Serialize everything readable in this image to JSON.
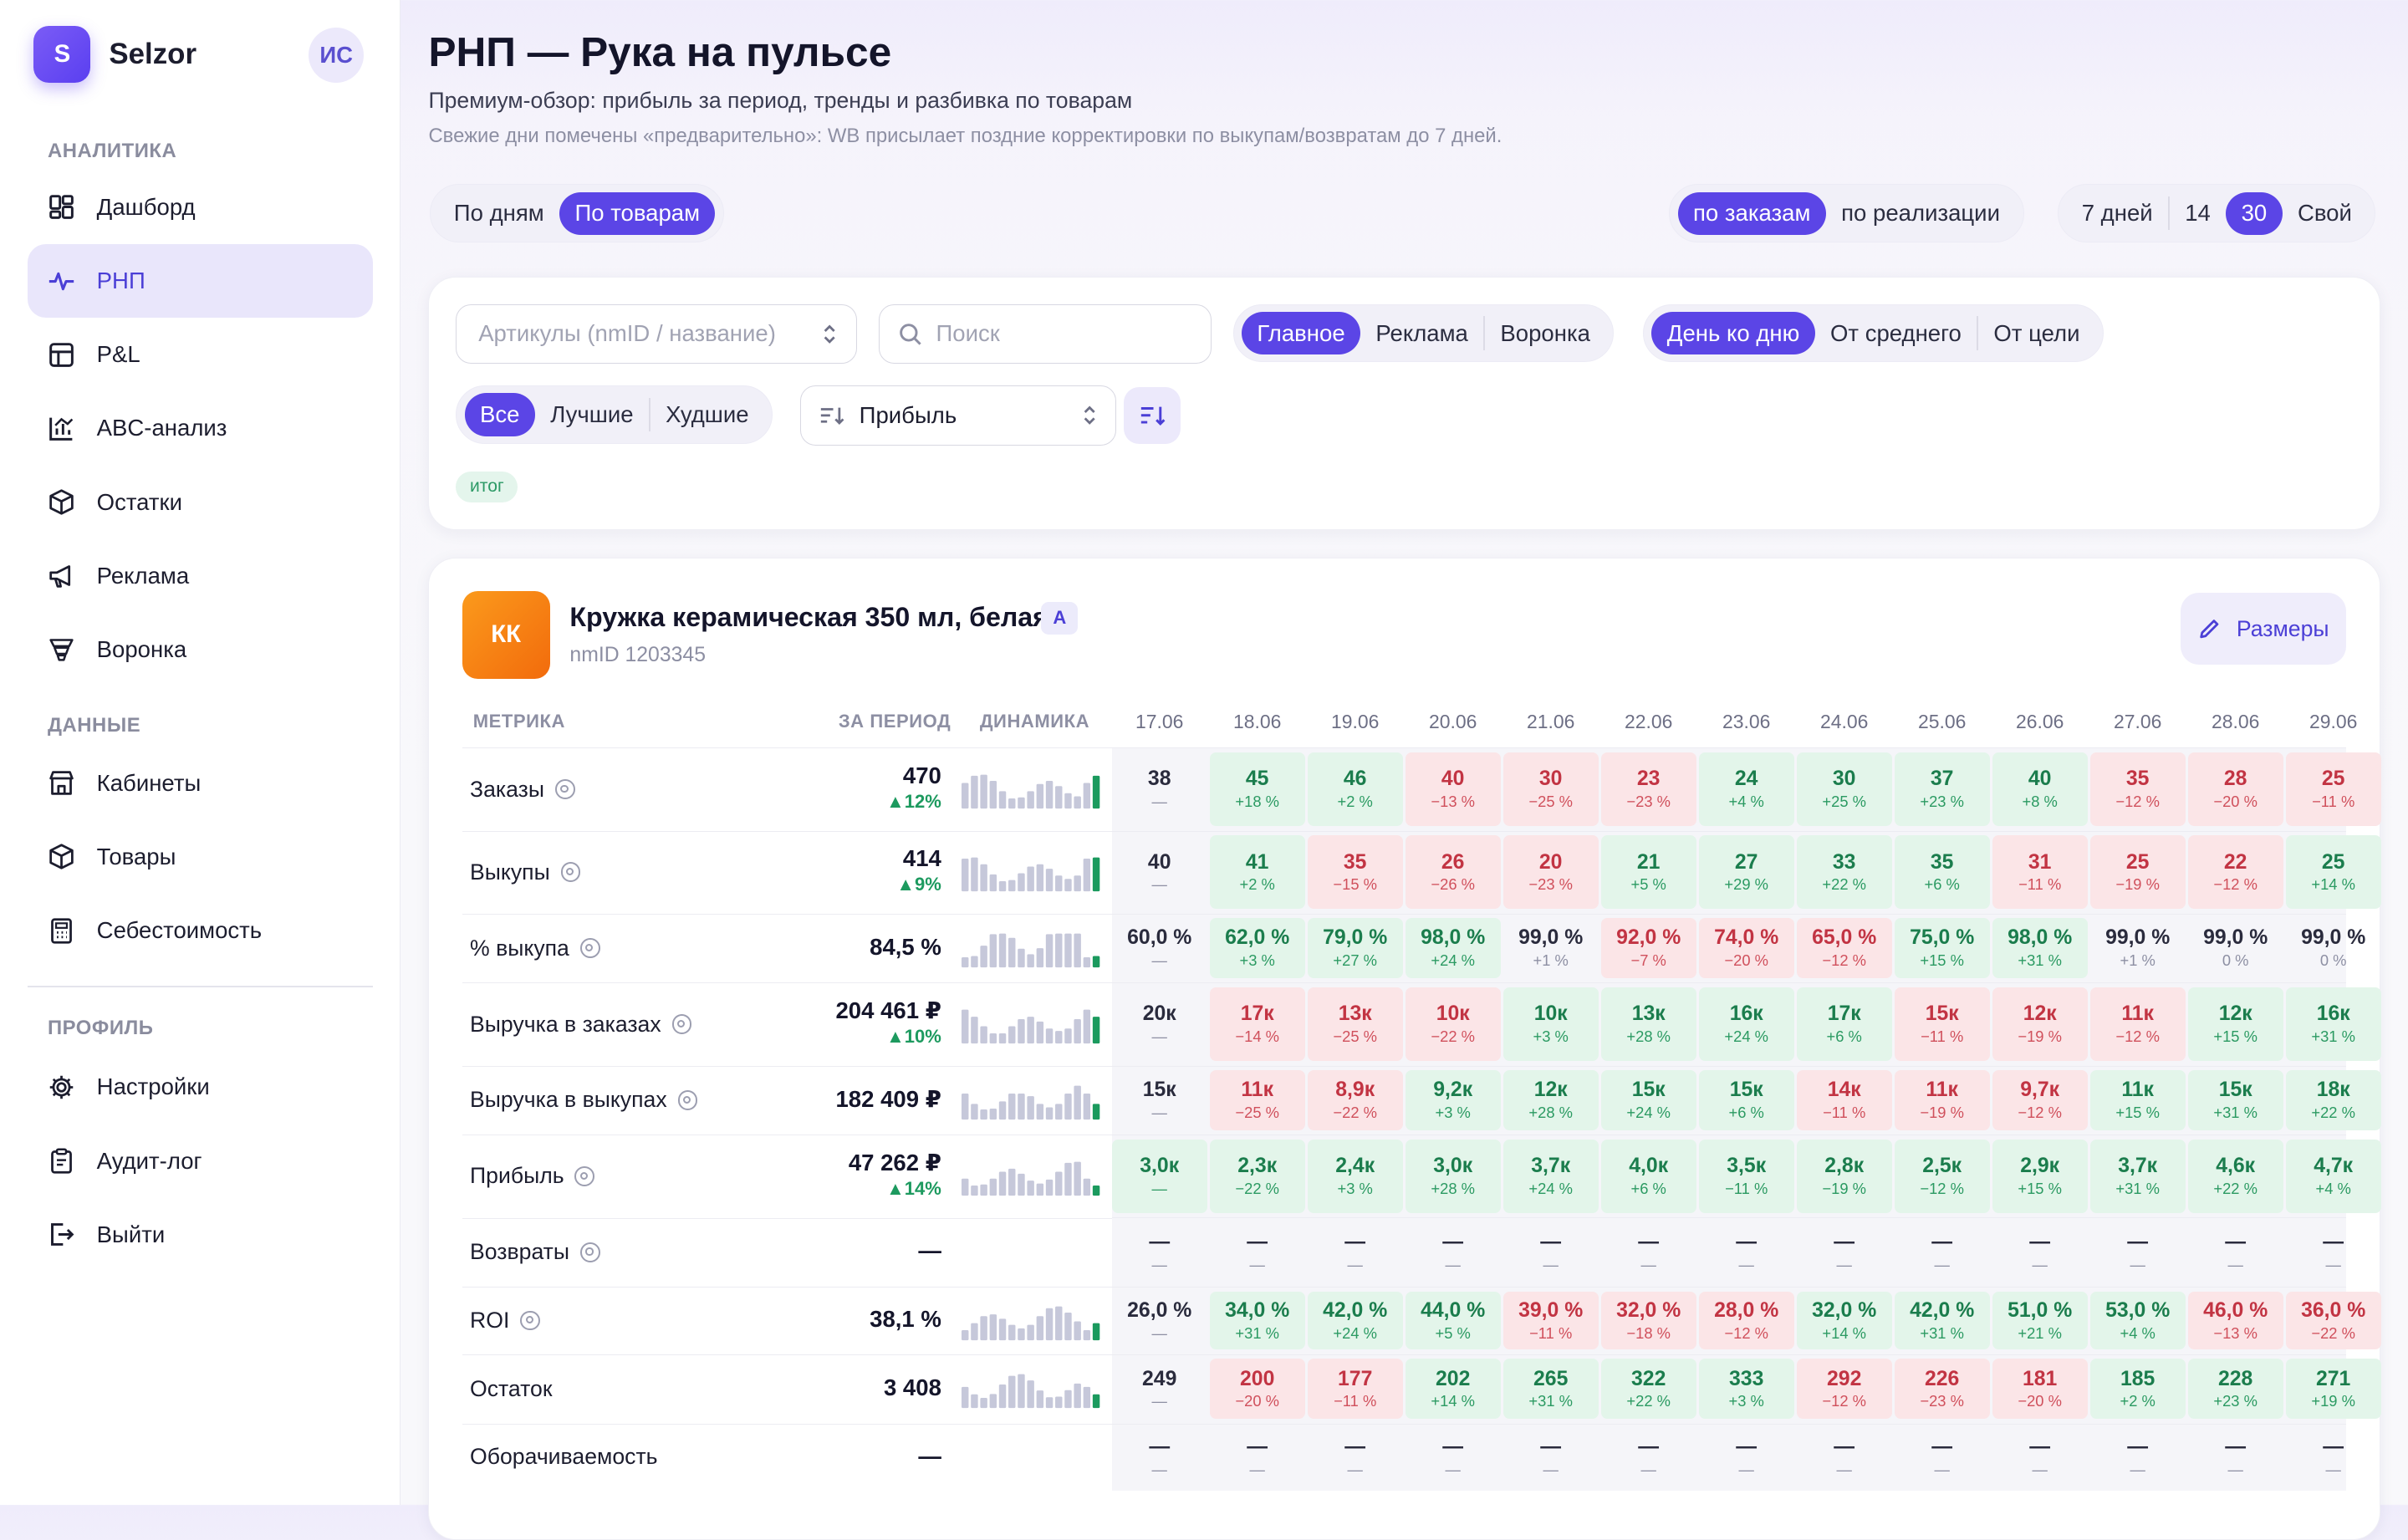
{
  "sidebar": {
    "brand": {
      "logo_letter": "S",
      "name": "Selzor"
    },
    "avatar": "ИС",
    "sections": [
      {
        "title": "АНАЛИТИКА",
        "items": [
          {
            "label": "Дашборд",
            "icon": "dashboard-icon"
          },
          {
            "label": "РНП",
            "icon": "pulse-icon",
            "active": true
          },
          {
            "label": "P&L",
            "icon": "table-icon"
          },
          {
            "label": "ABC-анализ",
            "icon": "abc-chart-icon"
          },
          {
            "label": "Остатки",
            "icon": "box-icon"
          },
          {
            "label": "Реклама",
            "icon": "megaphone-icon"
          },
          {
            "label": "Воронка",
            "icon": "funnel-icon"
          }
        ]
      },
      {
        "title": "ДАННЫЕ",
        "items": [
          {
            "label": "Кабинеты",
            "icon": "store-icon"
          },
          {
            "label": "Товары",
            "icon": "box-icon"
          },
          {
            "label": "Себестоимость",
            "icon": "calculator-icon"
          }
        ]
      },
      {
        "title": "ПРОФИЛЬ",
        "items": [
          {
            "label": "Настройки",
            "icon": "gear-icon"
          },
          {
            "label": "Аудит-лог",
            "icon": "clipboard-icon"
          },
          {
            "label": "Выйти",
            "icon": "logout-icon"
          }
        ]
      }
    ]
  },
  "header": {
    "title": "РНП — Рука на пульсе",
    "subtitle": "Премиум-обзор: прибыль за период, тренды и разбивка по товарам",
    "note": "Свежие дни помечены «предварительно»: WB присылает поздние корректировки по выкупам/возвратам до 7 дней."
  },
  "toggles": {
    "view": [
      "По дням",
      "По товарам"
    ],
    "view_selected": 1,
    "basis": [
      "по заказам",
      "по реализации"
    ],
    "basis_selected": 0,
    "period": [
      "7 дней",
      "14",
      "30",
      "Свой"
    ],
    "period_selected": 2
  },
  "filters": {
    "articles_placeholder": "Артикулы (nmID / название)",
    "search_placeholder": "Поиск",
    "groups": [
      "Главное",
      "Реклама",
      "Воронка"
    ],
    "groups_selected": 0,
    "compare": [
      "День ко дню",
      "От среднего",
      "От цели"
    ],
    "compare_selected": 0,
    "rank": [
      "Все",
      "Лучшие",
      "Худшие"
    ],
    "rank_selected": 0,
    "sort_value": "Прибыль",
    "chip": "итог"
  },
  "product": {
    "thumb": "КК",
    "title": "Кружка керамическая 350 мл, белая",
    "abc": "A",
    "nmid": "nmID 1203345",
    "sizes_button": "Размеры"
  },
  "table": {
    "headers": {
      "metric": "МЕТРИКА",
      "period": "ЗА ПЕРИОД",
      "trend": "ДИНАМИКА"
    },
    "dates": [
      "17.06",
      "18.06",
      "19.06",
      "20.06",
      "21.06",
      "22.06",
      "23.06",
      "24.06",
      "25.06",
      "26.06",
      "27.06",
      "28.06",
      "29.06"
    ],
    "rows": [
      {
        "name": "Заказы",
        "info": true,
        "total": "470",
        "delta": "▲12%",
        "cells": [
          [
            "38",
            "—",
            "n"
          ],
          [
            "45",
            "+18 %",
            "g"
          ],
          [
            "46",
            "+2 %",
            "g"
          ],
          [
            "40",
            "−13 %",
            "r"
          ],
          [
            "30",
            "−25 %",
            "r"
          ],
          [
            "23",
            "−23 %",
            "r"
          ],
          [
            "24",
            "+4 %",
            "g"
          ],
          [
            "30",
            "+25 %",
            "g"
          ],
          [
            "37",
            "+23 %",
            "g"
          ],
          [
            "40",
            "+8 %",
            "g"
          ],
          [
            "35",
            "−12 %",
            "r"
          ],
          [
            "28",
            "−20 %",
            "r"
          ],
          [
            "25",
            "−11 %",
            "r"
          ]
        ]
      },
      {
        "name": "Выкупы",
        "info": true,
        "total": "414",
        "delta": "▲9%",
        "cells": [
          [
            "40",
            "—",
            "n"
          ],
          [
            "41",
            "+2 %",
            "g"
          ],
          [
            "35",
            "−15 %",
            "r"
          ],
          [
            "26",
            "−26 %",
            "r"
          ],
          [
            "20",
            "−23 %",
            "r"
          ],
          [
            "21",
            "+5 %",
            "g"
          ],
          [
            "27",
            "+29 %",
            "g"
          ],
          [
            "33",
            "+22 %",
            "g"
          ],
          [
            "35",
            "+6 %",
            "g"
          ],
          [
            "31",
            "−11 %",
            "r"
          ],
          [
            "25",
            "−19 %",
            "r"
          ],
          [
            "22",
            "−12 %",
            "r"
          ],
          [
            "25",
            "+14 %",
            "g"
          ]
        ]
      },
      {
        "name": "% выкупа",
        "info": true,
        "total": "84,5 %",
        "delta": "",
        "cells": [
          [
            "60,0 %",
            "—",
            "n"
          ],
          [
            "62,0 %",
            "+3 %",
            "g"
          ],
          [
            "79,0 %",
            "+27 %",
            "g"
          ],
          [
            "98,0 %",
            "+24 %",
            "g"
          ],
          [
            "99,0 %",
            "+1 %",
            "n"
          ],
          [
            "92,0 %",
            "−7 %",
            "r"
          ],
          [
            "74,0 %",
            "−20 %",
            "r"
          ],
          [
            "65,0 %",
            "−12 %",
            "r"
          ],
          [
            "75,0 %",
            "+15 %",
            "g"
          ],
          [
            "98,0 %",
            "+31 %",
            "g"
          ],
          [
            "99,0 %",
            "+1 %",
            "n"
          ],
          [
            "99,0 %",
            "0 %",
            "n"
          ],
          [
            "99,0 %",
            "0 %",
            "n"
          ]
        ]
      },
      {
        "name": "Выручка в заказах",
        "info": true,
        "total": "204 461 ₽",
        "delta": "▲10%",
        "cells": [
          [
            "20к",
            "—",
            "n"
          ],
          [
            "17к",
            "−14 %",
            "r"
          ],
          [
            "13к",
            "−25 %",
            "r"
          ],
          [
            "10к",
            "−22 %",
            "r"
          ],
          [
            "10к",
            "+3 %",
            "g"
          ],
          [
            "13к",
            "+28 %",
            "g"
          ],
          [
            "16к",
            "+24 %",
            "g"
          ],
          [
            "17к",
            "+6 %",
            "g"
          ],
          [
            "15к",
            "−11 %",
            "r"
          ],
          [
            "12к",
            "−19 %",
            "r"
          ],
          [
            "11к",
            "−12 %",
            "r"
          ],
          [
            "12к",
            "+15 %",
            "g"
          ],
          [
            "16к",
            "+31 %",
            "g"
          ]
        ]
      },
      {
        "name": "Выручка в выкупах",
        "info": true,
        "total": "182 409 ₽",
        "delta": "",
        "cells": [
          [
            "15к",
            "—",
            "n"
          ],
          [
            "11к",
            "−25 %",
            "r"
          ],
          [
            "8,9к",
            "−22 %",
            "r"
          ],
          [
            "9,2к",
            "+3 %",
            "g"
          ],
          [
            "12к",
            "+28 %",
            "g"
          ],
          [
            "15к",
            "+24 %",
            "g"
          ],
          [
            "15к",
            "+6 %",
            "g"
          ],
          [
            "14к",
            "−11 %",
            "r"
          ],
          [
            "11к",
            "−19 %",
            "r"
          ],
          [
            "9,7к",
            "−12 %",
            "r"
          ],
          [
            "11к",
            "+15 %",
            "g"
          ],
          [
            "15к",
            "+31 %",
            "g"
          ],
          [
            "18к",
            "+22 %",
            "g"
          ]
        ]
      },
      {
        "name": "Прибыль",
        "info": true,
        "total": "47 262 ₽",
        "delta": "▲14%",
        "cells": [
          [
            "3,0к",
            "—",
            "g"
          ],
          [
            "2,3к",
            "−22 %",
            "g"
          ],
          [
            "2,4к",
            "+3 %",
            "g"
          ],
          [
            "3,0к",
            "+28 %",
            "g"
          ],
          [
            "3,7к",
            "+24 %",
            "g"
          ],
          [
            "4,0к",
            "+6 %",
            "g"
          ],
          [
            "3,5к",
            "−11 %",
            "g"
          ],
          [
            "2,8к",
            "−19 %",
            "g"
          ],
          [
            "2,5к",
            "−12 %",
            "g"
          ],
          [
            "2,9к",
            "+15 %",
            "g"
          ],
          [
            "3,7к",
            "+31 %",
            "g"
          ],
          [
            "4,6к",
            "+22 %",
            "g"
          ],
          [
            "4,7к",
            "+4 %",
            "g"
          ]
        ]
      },
      {
        "name": "Возвраты",
        "info": true,
        "total": "—",
        "delta": "",
        "cells": [
          [
            "—",
            "—",
            "n"
          ],
          [
            "—",
            "—",
            "n"
          ],
          [
            "—",
            "—",
            "n"
          ],
          [
            "—",
            "—",
            "n"
          ],
          [
            "—",
            "—",
            "n"
          ],
          [
            "—",
            "—",
            "n"
          ],
          [
            "—",
            "—",
            "n"
          ],
          [
            "—",
            "—",
            "n"
          ],
          [
            "—",
            "—",
            "n"
          ],
          [
            "—",
            "—",
            "n"
          ],
          [
            "—",
            "—",
            "n"
          ],
          [
            "—",
            "—",
            "n"
          ],
          [
            "—",
            "—",
            "n"
          ]
        ]
      },
      {
        "name": "ROI",
        "info": true,
        "total": "38,1 %",
        "delta": "",
        "cells": [
          [
            "26,0 %",
            "—",
            "n"
          ],
          [
            "34,0 %",
            "+31 %",
            "g"
          ],
          [
            "42,0 %",
            "+24 %",
            "g"
          ],
          [
            "44,0 %",
            "+5 %",
            "g"
          ],
          [
            "39,0 %",
            "−11 %",
            "r"
          ],
          [
            "32,0 %",
            "−18 %",
            "r"
          ],
          [
            "28,0 %",
            "−12 %",
            "r"
          ],
          [
            "32,0 %",
            "+14 %",
            "g"
          ],
          [
            "42,0 %",
            "+31 %",
            "g"
          ],
          [
            "51,0 %",
            "+21 %",
            "g"
          ],
          [
            "53,0 %",
            "+4 %",
            "g"
          ],
          [
            "46,0 %",
            "−13 %",
            "r"
          ],
          [
            "36,0 %",
            "−22 %",
            "r"
          ]
        ]
      },
      {
        "name": "Остаток",
        "info": false,
        "total": "3 408",
        "delta": "",
        "cells": [
          [
            "249",
            "—",
            "n"
          ],
          [
            "200",
            "−20 %",
            "r"
          ],
          [
            "177",
            "−11 %",
            "r"
          ],
          [
            "202",
            "+14 %",
            "g"
          ],
          [
            "265",
            "+31 %",
            "g"
          ],
          [
            "322",
            "+22 %",
            "g"
          ],
          [
            "333",
            "+3 %",
            "g"
          ],
          [
            "292",
            "−12 %",
            "r"
          ],
          [
            "226",
            "−23 %",
            "r"
          ],
          [
            "181",
            "−20 %",
            "r"
          ],
          [
            "185",
            "+2 %",
            "g"
          ],
          [
            "228",
            "+23 %",
            "g"
          ],
          [
            "271",
            "+19 %",
            "g"
          ]
        ]
      },
      {
        "name": "Оборачиваемость",
        "info": false,
        "total": "—",
        "delta": "",
        "cells": [
          [
            "—",
            "—",
            "n"
          ],
          [
            "—",
            "—",
            "n"
          ],
          [
            "—",
            "—",
            "n"
          ],
          [
            "—",
            "—",
            "n"
          ],
          [
            "—",
            "—",
            "n"
          ],
          [
            "—",
            "—",
            "n"
          ],
          [
            "—",
            "—",
            "n"
          ],
          [
            "—",
            "—",
            "n"
          ],
          [
            "—",
            "—",
            "n"
          ],
          [
            "—",
            "—",
            "n"
          ],
          [
            "—",
            "—",
            "n"
          ],
          [
            "—",
            "—",
            "n"
          ],
          [
            "—",
            "—",
            "n"
          ]
        ]
      }
    ]
  },
  "colors": {
    "accent": "#5b45e6",
    "positive": "#1b7d4d",
    "negative": "#c23443"
  }
}
